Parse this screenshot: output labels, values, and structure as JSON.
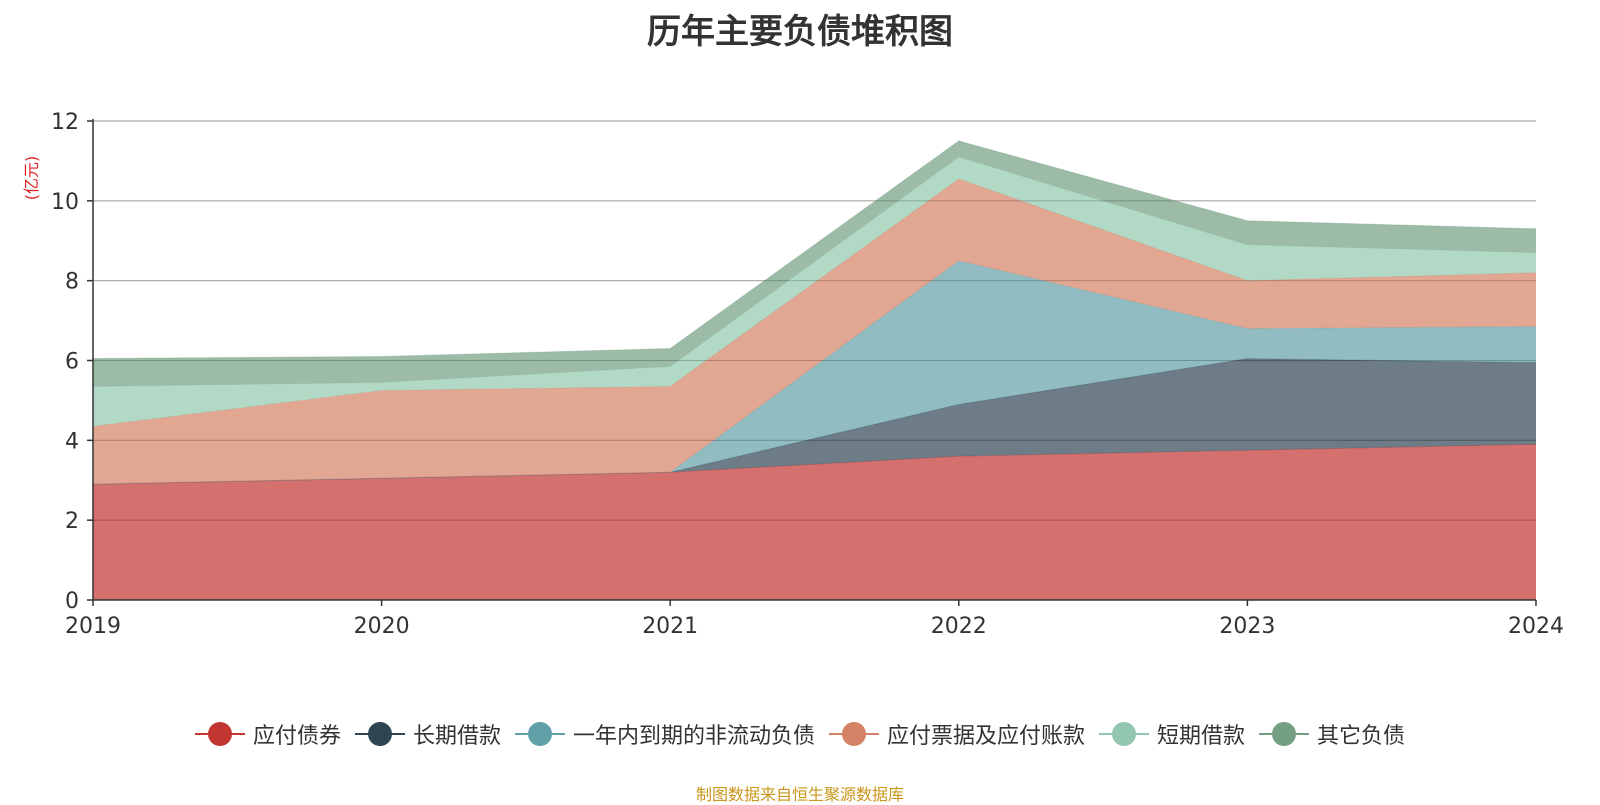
{
  "chart_data": {
    "type": "area",
    "stacked": true,
    "title": "历年主要负债堆积图",
    "ylabel": "(亿元)",
    "xlabel": "",
    "categories": [
      "2019",
      "2020",
      "2021",
      "2022",
      "2023",
      "2024"
    ],
    "ylim": [
      0,
      12
    ],
    "yticks": [
      0,
      2,
      4,
      6,
      8,
      10,
      12
    ],
    "grid": true,
    "legend_position": "bottom",
    "series": [
      {
        "name": "应付债券",
        "color": "#c23531",
        "values": [
          2.9,
          3.05,
          3.2,
          3.6,
          3.75,
          3.9
        ]
      },
      {
        "name": "长期借款",
        "color": "#2f4554",
        "values": [
          0.0,
          0.0,
          0.0,
          1.3,
          2.3,
          2.05
        ]
      },
      {
        "name": "一年内到期的非流动负债",
        "color": "#61a0a8",
        "values": [
          0.0,
          0.0,
          0.0,
          3.6,
          0.75,
          0.9
        ]
      },
      {
        "name": "应付票据及应付账款",
        "color": "#d48265",
        "values": [
          1.45,
          2.2,
          2.15,
          2.05,
          1.2,
          1.35
        ]
      },
      {
        "name": "短期借款",
        "color": "#91c7ae",
        "values": [
          1.0,
          0.2,
          0.5,
          0.55,
          0.9,
          0.5
        ]
      },
      {
        "name": "其它负债",
        "color": "#749f83",
        "values": [
          0.7,
          0.65,
          0.45,
          0.4,
          0.6,
          0.6
        ]
      }
    ]
  },
  "source_note": "制图数据来自恒生聚源数据库"
}
